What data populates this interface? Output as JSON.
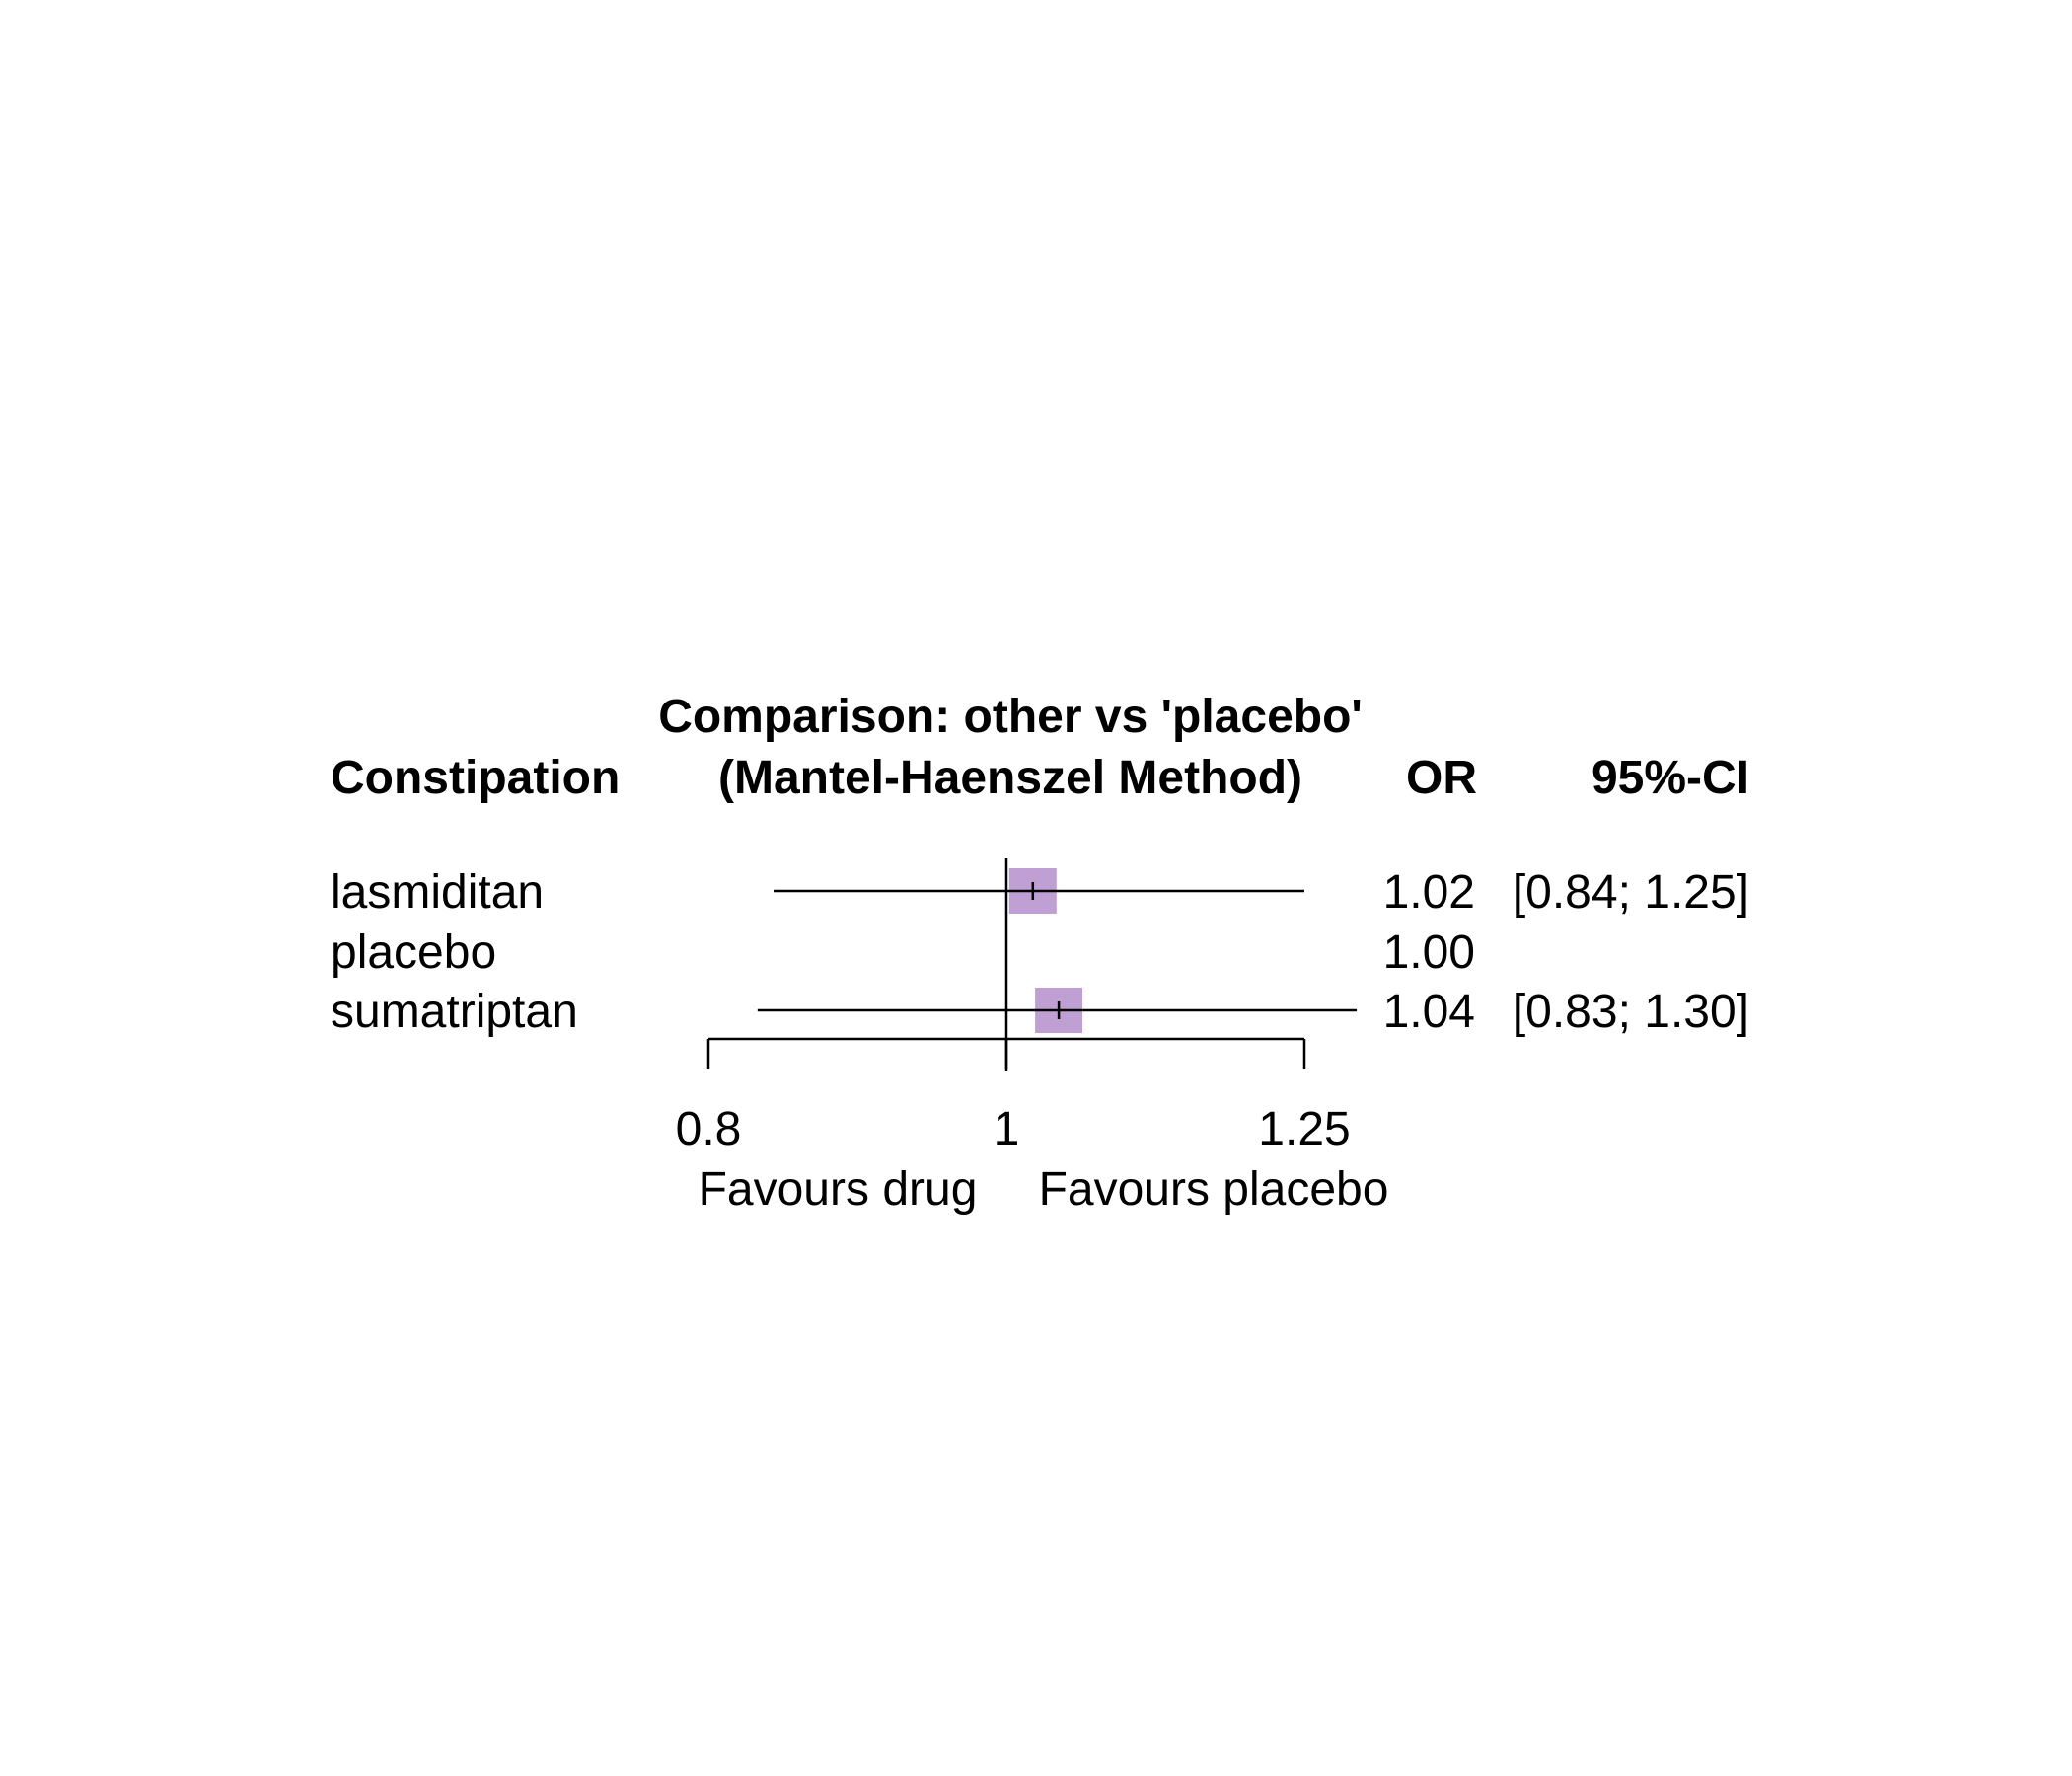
{
  "chart_data": {
    "type": "forest",
    "title_line1": "Comparison: other vs 'placebo'",
    "title_line2": "(Mantel-Haenszel Method)",
    "column_headers": {
      "outcome": "Constipation",
      "effect": "OR",
      "ci": "95%-CI"
    },
    "rows": [
      {
        "label": "lasmiditan",
        "or": 1.02,
        "lower": 0.84,
        "upper": 1.25,
        "or_text": "1.02",
        "ci_text": "[0.84; 1.25]"
      },
      {
        "label": "placebo",
        "or": 1.0,
        "lower": null,
        "upper": null,
        "or_text": "1.00",
        "ci_text": ""
      },
      {
        "label": "sumatriptan",
        "or": 1.04,
        "lower": 0.83,
        "upper": 1.3,
        "or_text": "1.04",
        "ci_text": "[0.83; 1.30]"
      }
    ],
    "x_axis": {
      "scale": "log",
      "ticks": [
        0.8,
        1,
        1.25
      ],
      "tick_labels": [
        "0.8",
        "1",
        "1.25"
      ],
      "reference_line": 1
    },
    "favours_left": "Favours drug",
    "favours_right": "Favours placebo",
    "box_color": "#c0a0d4"
  }
}
